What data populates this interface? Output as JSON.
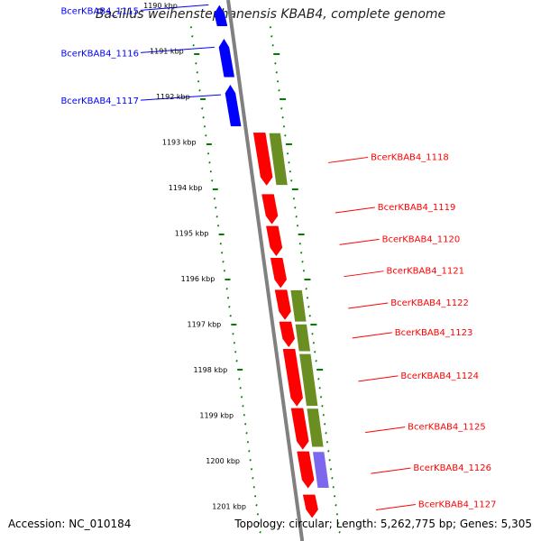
{
  "title": "Bacillus weihenstephanensis KBAB4, complete genome",
  "footer": {
    "accession": "Accession: NC_010184",
    "topology": "Topology: circular; Length: 5,262,775 bp; Genes: 5,305"
  },
  "colors": {
    "forward_cds": "#ff0000",
    "reverse_cds": "#0000ff",
    "feature_green": "#6b8e23",
    "feature_purple": "#7b68ee",
    "ruler_tick": "#008000",
    "backbone": "#808080"
  },
  "ruler_labels": [
    {
      "kbp": 1190,
      "text": "1190 kbp"
    },
    {
      "kbp": 1191,
      "text": "1191 kbp"
    },
    {
      "kbp": 1192,
      "text": "1192 kbp"
    },
    {
      "kbp": 1193,
      "text": "1193 kbp"
    },
    {
      "kbp": 1194,
      "text": "1194 kbp"
    },
    {
      "kbp": 1195,
      "text": "1195 kbp"
    },
    {
      "kbp": 1196,
      "text": "1196 kbp"
    },
    {
      "kbp": 1197,
      "text": "1197 kbp"
    },
    {
      "kbp": 1198,
      "text": "1198 kbp"
    },
    {
      "kbp": 1199,
      "text": "1199 kbp"
    },
    {
      "kbp": 1200,
      "text": "1200 kbp"
    },
    {
      "kbp": 1201,
      "text": "1201 kbp"
    }
  ],
  "reverse_genes": [
    {
      "name": "BcerKBAB4_1115",
      "start_kbp": 1190.0,
      "end_kbp": 1190.45
    },
    {
      "name": "BcerKBAB4_1116",
      "start_kbp": 1190.74,
      "end_kbp": 1191.57
    },
    {
      "name": "BcerKBAB4_1117",
      "start_kbp": 1191.75,
      "end_kbp": 1192.65
    }
  ],
  "forward_genes": [
    {
      "name": "BcerKBAB4_1118",
      "start_kbp": 1192.8,
      "end_kbp": 1193.95
    },
    {
      "name": "BcerKBAB4_1119",
      "start_kbp": 1194.15,
      "end_kbp": 1194.8
    },
    {
      "name": "BcerKBAB4_1120",
      "start_kbp": 1194.85,
      "end_kbp": 1195.5
    },
    {
      "name": "BcerKBAB4_1121",
      "start_kbp": 1195.55,
      "end_kbp": 1196.2
    },
    {
      "name": "BcerKBAB4_1122",
      "start_kbp": 1196.25,
      "end_kbp": 1196.9
    },
    {
      "name": "BcerKBAB4_1123",
      "start_kbp": 1196.95,
      "end_kbp": 1197.5
    },
    {
      "name": "BcerKBAB4_1124",
      "start_kbp": 1197.55,
      "end_kbp": 1198.8
    },
    {
      "name": "BcerKBAB4_1125",
      "start_kbp": 1198.85,
      "end_kbp": 1199.75
    },
    {
      "name": "BcerKBAB4_1126",
      "start_kbp": 1199.8,
      "end_kbp": 1200.6
    },
    {
      "name": "BcerKBAB4_1127",
      "start_kbp": 1200.75,
      "end_kbp": 1201.25
    }
  ],
  "green_features": [
    {
      "start_kbp": 1192.8,
      "end_kbp": 1193.95
    },
    {
      "start_kbp": 1196.25,
      "end_kbp": 1196.95
    },
    {
      "start_kbp": 1197.0,
      "end_kbp": 1197.6
    },
    {
      "start_kbp": 1197.65,
      "end_kbp": 1198.8
    },
    {
      "start_kbp": 1198.85,
      "end_kbp": 1199.7
    }
  ],
  "purple_features": [
    {
      "start_kbp": 1199.8,
      "end_kbp": 1200.6
    }
  ]
}
